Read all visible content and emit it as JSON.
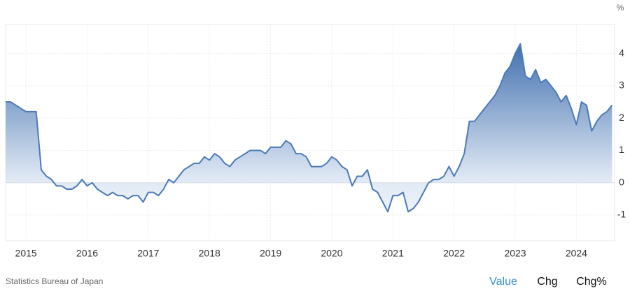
{
  "chart_data": {
    "type": "area",
    "unit_label": "%",
    "source": "Statistics Bureau of Japan",
    "color": "#4a7ab8",
    "categories": [
      null,
      null,
      null,
      null,
      "2015",
      null,
      null,
      null,
      null,
      null,
      null,
      null,
      null,
      null,
      null,
      null,
      "2016",
      null,
      null,
      null,
      null,
      null,
      null,
      null,
      null,
      null,
      null,
      null,
      "2017",
      null,
      null,
      null,
      null,
      null,
      null,
      null,
      null,
      null,
      null,
      null,
      "2018",
      null,
      null,
      null,
      null,
      null,
      null,
      null,
      null,
      null,
      null,
      null,
      "2019",
      null,
      null,
      null,
      null,
      null,
      null,
      null,
      null,
      null,
      null,
      null,
      "2020",
      null,
      null,
      null,
      null,
      null,
      null,
      null,
      null,
      null,
      null,
      null,
      "2021",
      null,
      null,
      null,
      null,
      null,
      null,
      null,
      null,
      null,
      null,
      null,
      "2022",
      null,
      null,
      null,
      null,
      null,
      null,
      null,
      null,
      null,
      null,
      null,
      "2023",
      null,
      null,
      null,
      null,
      null,
      null,
      null,
      null,
      null,
      null,
      null,
      "2024",
      null,
      null,
      null,
      null,
      null,
      null,
      null
    ],
    "values": [
      2.5,
      2.5,
      2.4,
      2.3,
      2.2,
      2.2,
      2.2,
      0.4,
      0.2,
      0.1,
      -0.1,
      -0.1,
      -0.2,
      -0.2,
      -0.1,
      0.1,
      -0.1,
      0.0,
      -0.2,
      -0.3,
      -0.4,
      -0.3,
      -0.4,
      -0.4,
      -0.5,
      -0.4,
      -0.4,
      -0.6,
      -0.3,
      -0.3,
      -0.4,
      -0.2,
      0.1,
      0.0,
      0.2,
      0.4,
      0.5,
      0.6,
      0.6,
      0.8,
      0.7,
      0.9,
      0.8,
      0.6,
      0.5,
      0.7,
      0.8,
      0.9,
      1.0,
      1.0,
      1.0,
      0.9,
      1.1,
      1.1,
      1.1,
      1.3,
      1.2,
      0.9,
      0.9,
      0.8,
      0.5,
      0.5,
      0.5,
      0.6,
      0.8,
      0.7,
      0.5,
      0.4,
      -0.1,
      0.2,
      0.2,
      0.4,
      -0.2,
      -0.3,
      -0.6,
      -0.9,
      -0.4,
      -0.4,
      -0.3,
      -0.9,
      -0.8,
      -0.6,
      -0.3,
      0.0,
      0.1,
      0.1,
      0.2,
      0.5,
      0.2,
      0.5,
      0.9,
      1.9,
      1.9,
      2.1,
      2.3,
      2.5,
      2.7,
      3.0,
      3.4,
      3.6,
      4.0,
      4.3,
      3.3,
      3.2,
      3.5,
      3.1,
      3.2,
      3.0,
      2.8,
      2.5,
      2.7,
      2.3,
      1.8,
      2.5,
      2.4,
      1.6,
      1.9,
      2.1,
      2.2,
      2.4
    ],
    "ylim": [
      -1.8,
      4.9
    ],
    "yticks": [
      -1,
      0,
      1,
      2,
      3,
      4
    ],
    "grid": true
  },
  "tabs": [
    "Value",
    "Chg",
    "Chg%"
  ]
}
